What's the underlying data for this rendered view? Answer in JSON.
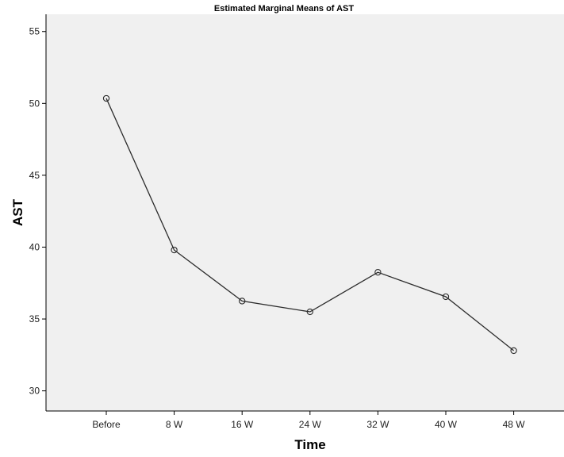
{
  "chart_data": {
    "type": "line",
    "title": "Estimated Marginal Means of AST",
    "xlabel": "Time",
    "ylabel": "AST",
    "categories": [
      "Before",
      "8 W",
      "16 W",
      "24 W",
      "32 W",
      "40 W",
      "48 W"
    ],
    "series": [
      {
        "values": [
          50.35,
          39.8,
          36.25,
          35.5,
          38.25,
          36.55,
          32.8
        ]
      }
    ],
    "ylim": [
      28.6,
      56.2
    ],
    "yticks": [
      "30",
      "35",
      "40",
      "45",
      "50",
      "55"
    ],
    "grid": false,
    "marker": "open-circle",
    "colors": {
      "plot_background": "#f0f0f0",
      "line": "#2b2b2b",
      "axis": "#000000"
    }
  }
}
